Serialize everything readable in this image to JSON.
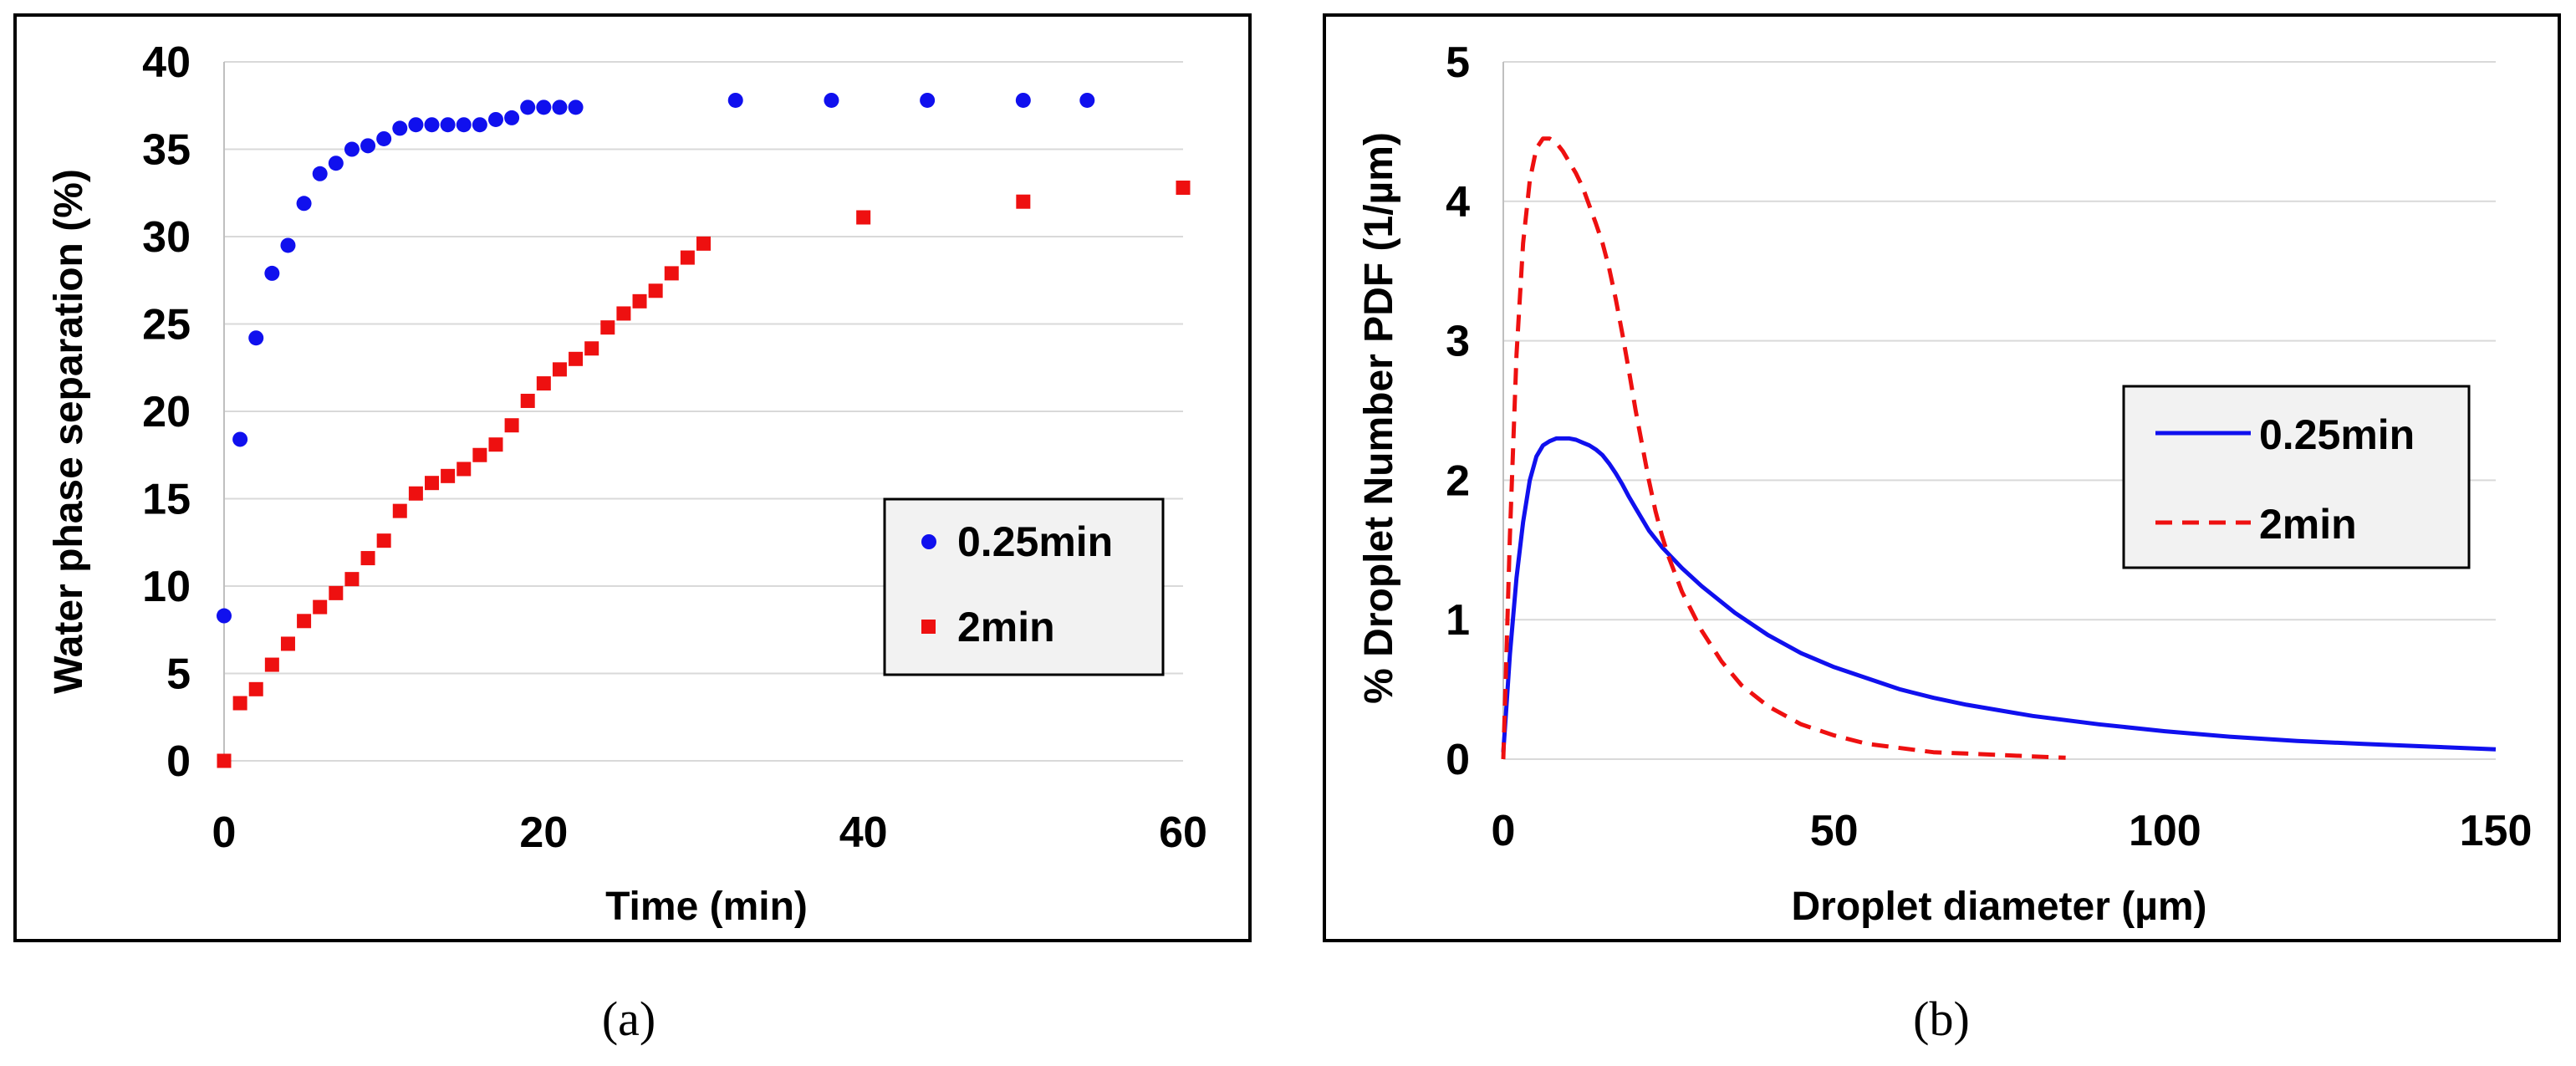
{
  "chart_data": [
    {
      "type": "scatter",
      "title": "",
      "xlabel": "Time (min)",
      "ylabel": "Water phase separation (%)",
      "xlim": [
        0,
        60
      ],
      "ylim": [
        0,
        40
      ],
      "xticks": [
        "0",
        "20",
        "40",
        "60"
      ],
      "yticks": [
        "0",
        "5",
        "10",
        "15",
        "20",
        "25",
        "30",
        "35",
        "40"
      ],
      "grid": "horizontal",
      "legend_position": "right",
      "caption": "(a)",
      "series": [
        {
          "name": "0.25min",
          "color": "#1010ee",
          "marker": "circle",
          "points": [
            [
              0,
              8.3
            ],
            [
              1,
              18.4
            ],
            [
              2,
              24.2
            ],
            [
              3,
              27.9
            ],
            [
              4,
              29.5
            ],
            [
              5,
              31.9
            ],
            [
              6,
              33.6
            ],
            [
              7,
              34.2
            ],
            [
              8,
              35.0
            ],
            [
              9,
              35.2
            ],
            [
              10,
              35.6
            ],
            [
              11,
              36.2
            ],
            [
              12,
              36.4
            ],
            [
              13,
              36.4
            ],
            [
              14,
              36.4
            ],
            [
              15,
              36.4
            ],
            [
              16,
              36.4
            ],
            [
              17,
              36.7
            ],
            [
              18,
              36.8
            ],
            [
              19,
              37.4
            ],
            [
              20,
              37.4
            ],
            [
              21,
              37.4
            ],
            [
              22,
              37.4
            ],
            [
              32,
              37.8
            ],
            [
              38,
              37.8
            ],
            [
              44,
              37.8
            ],
            [
              50,
              37.8
            ],
            [
              54,
              37.8
            ]
          ]
        },
        {
          "name": "2min",
          "color": "#ee1010",
          "marker": "square",
          "points": [
            [
              0,
              0
            ],
            [
              1,
              3.3
            ],
            [
              2,
              4.1
            ],
            [
              3,
              5.5
            ],
            [
              4,
              6.7
            ],
            [
              5,
              8.0
            ],
            [
              6,
              8.8
            ],
            [
              7,
              9.6
            ],
            [
              8,
              10.4
            ],
            [
              9,
              11.6
            ],
            [
              10,
              12.6
            ],
            [
              11,
              14.3
            ],
            [
              12,
              15.3
            ],
            [
              13,
              15.9
            ],
            [
              14,
              16.3
            ],
            [
              15,
              16.7
            ],
            [
              16,
              17.5
            ],
            [
              17,
              18.1
            ],
            [
              18,
              19.2
            ],
            [
              19,
              20.6
            ],
            [
              20,
              21.6
            ],
            [
              21,
              22.4
            ],
            [
              22,
              23.0
            ],
            [
              23,
              23.6
            ],
            [
              24,
              24.8
            ],
            [
              25,
              25.6
            ],
            [
              26,
              26.3
            ],
            [
              27,
              26.9
            ],
            [
              28,
              27.9
            ],
            [
              29,
              28.8
            ],
            [
              30,
              29.6
            ],
            [
              40,
              31.1
            ],
            [
              50,
              32.0
            ],
            [
              60,
              32.8
            ]
          ]
        }
      ]
    },
    {
      "type": "line",
      "title": "",
      "xlabel": "Droplet diameter (µm)",
      "ylabel": "% Droplet Number PDF (1/µm)",
      "xlim": [
        0,
        150
      ],
      "ylim": [
        0,
        5
      ],
      "xticks": [
        "0",
        "50",
        "100",
        "150"
      ],
      "yticks": [
        "0",
        "1",
        "2",
        "3",
        "4",
        "5"
      ],
      "grid": "horizontal",
      "legend_position": "right",
      "caption": "(b)",
      "series": [
        {
          "name": "0.25min",
          "color": "#1010ee",
          "style": "solid",
          "points": [
            [
              0,
              0.05
            ],
            [
              0.5,
              0.4
            ],
            [
              1,
              0.75
            ],
            [
              2,
              1.3
            ],
            [
              3,
              1.7
            ],
            [
              4,
              2.0
            ],
            [
              5,
              2.17
            ],
            [
              6,
              2.25
            ],
            [
              7,
              2.28
            ],
            [
              8,
              2.3
            ],
            [
              9,
              2.3
            ],
            [
              10,
              2.3
            ],
            [
              11,
              2.29
            ],
            [
              12,
              2.27
            ],
            [
              13,
              2.25
            ],
            [
              14,
              2.22
            ],
            [
              15,
              2.18
            ],
            [
              16,
              2.12
            ],
            [
              17,
              2.05
            ],
            [
              18,
              1.97
            ],
            [
              19,
              1.88
            ],
            [
              20,
              1.8
            ],
            [
              22,
              1.64
            ],
            [
              24,
              1.52
            ],
            [
              25,
              1.47
            ],
            [
              27,
              1.37
            ],
            [
              30,
              1.24
            ],
            [
              35,
              1.05
            ],
            [
              40,
              0.89
            ],
            [
              45,
              0.76
            ],
            [
              50,
              0.66
            ],
            [
              55,
              0.58
            ],
            [
              60,
              0.5
            ],
            [
              65,
              0.44
            ],
            [
              70,
              0.39
            ],
            [
              75,
              0.35
            ],
            [
              80,
              0.31
            ],
            [
              90,
              0.25
            ],
            [
              100,
              0.2
            ],
            [
              110,
              0.16
            ],
            [
              120,
              0.13
            ],
            [
              130,
              0.11
            ],
            [
              140,
              0.09
            ],
            [
              150,
              0.07
            ]
          ]
        },
        {
          "name": "2min",
          "color": "#ee1010",
          "style": "dashed",
          "points": [
            [
              0,
              0
            ],
            [
              0.5,
              0.8
            ],
            [
              1,
              1.6
            ],
            [
              2,
              2.9
            ],
            [
              3,
              3.7
            ],
            [
              4,
              4.15
            ],
            [
              5,
              4.38
            ],
            [
              6,
              4.45
            ],
            [
              7,
              4.45
            ],
            [
              8,
              4.42
            ],
            [
              9,
              4.36
            ],
            [
              10,
              4.28
            ],
            [
              11,
              4.2
            ],
            [
              12,
              4.1
            ],
            [
              13,
              3.97
            ],
            [
              14,
              3.84
            ],
            [
              15,
              3.7
            ],
            [
              16,
              3.52
            ],
            [
              17,
              3.3
            ],
            [
              18,
              3.05
            ],
            [
              19,
              2.78
            ],
            [
              20,
              2.5
            ],
            [
              21,
              2.25
            ],
            [
              22,
              2.0
            ],
            [
              23,
              1.78
            ],
            [
              24,
              1.6
            ],
            [
              25,
              1.45
            ],
            [
              27,
              1.2
            ],
            [
              30,
              0.92
            ],
            [
              33,
              0.7
            ],
            [
              36,
              0.53
            ],
            [
              40,
              0.38
            ],
            [
              45,
              0.25
            ],
            [
              50,
              0.17
            ],
            [
              55,
              0.11
            ],
            [
              60,
              0.08
            ],
            [
              65,
              0.05
            ],
            [
              70,
              0.04
            ],
            [
              75,
              0.03
            ],
            [
              80,
              0.02
            ],
            [
              85,
              0.01
            ]
          ]
        }
      ]
    }
  ]
}
